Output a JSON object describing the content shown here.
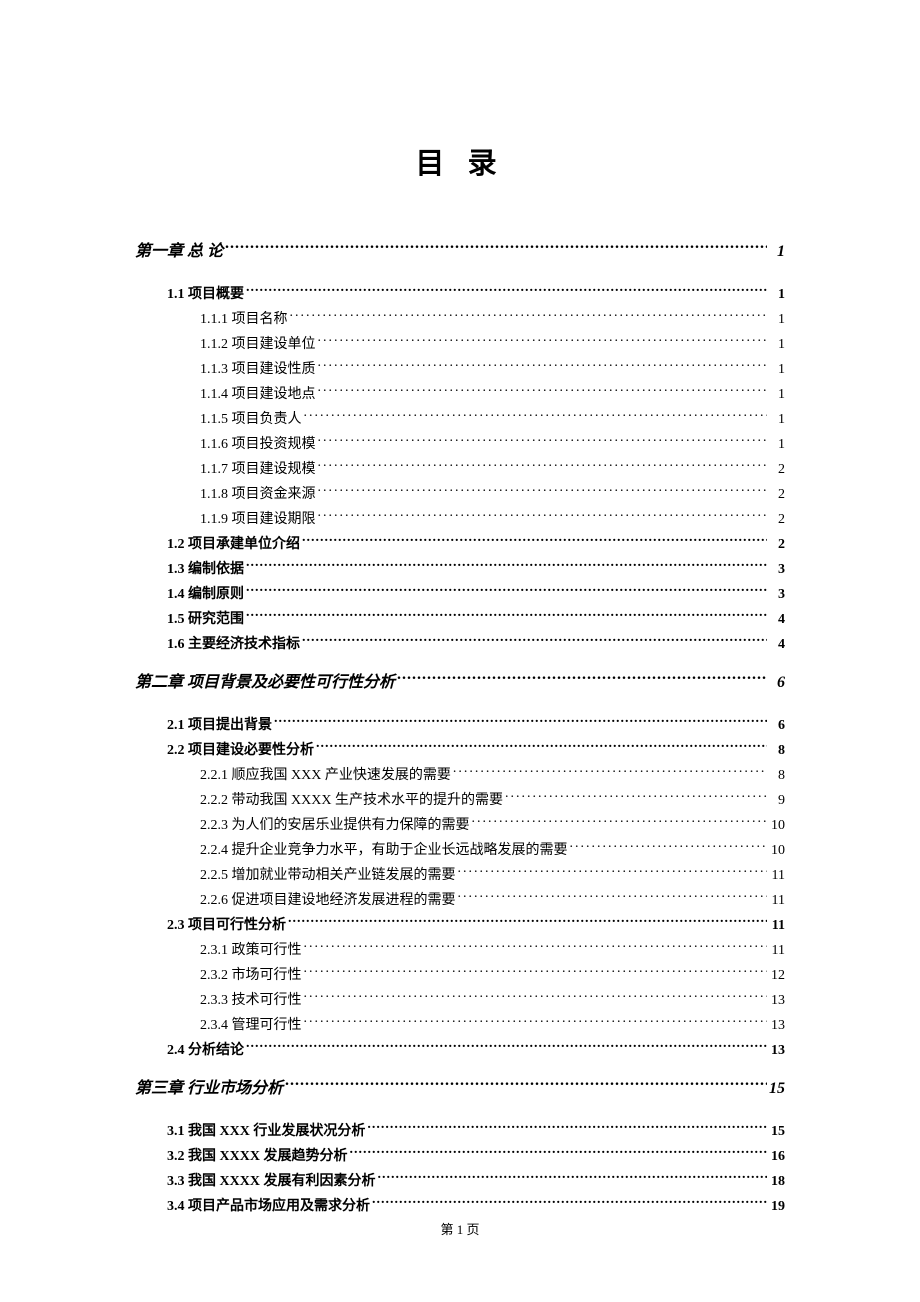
{
  "title": "目 录",
  "footer": "第 1 页",
  "entries": [
    {
      "level": 1,
      "label": "第一章  总  论",
      "page": "1"
    },
    {
      "level": 2,
      "label": "1.1 项目概要",
      "page": "1"
    },
    {
      "level": 3,
      "label": "1.1.1 项目名称",
      "page": "1"
    },
    {
      "level": 3,
      "label": "1.1.2 项目建设单位",
      "page": "1"
    },
    {
      "level": 3,
      "label": "1.1.3 项目建设性质",
      "page": "1"
    },
    {
      "level": 3,
      "label": "1.1.4 项目建设地点",
      "page": "1"
    },
    {
      "level": 3,
      "label": "1.1.5 项目负责人",
      "page": "1"
    },
    {
      "level": 3,
      "label": "1.1.6 项目投资规模",
      "page": "1"
    },
    {
      "level": 3,
      "label": "1.1.7 项目建设规模",
      "page": "2"
    },
    {
      "level": 3,
      "label": "1.1.8 项目资金来源",
      "page": "2"
    },
    {
      "level": 3,
      "label": "1.1.9 项目建设期限",
      "page": "2"
    },
    {
      "level": 2,
      "label": "1.2 项目承建单位介绍",
      "page": "2"
    },
    {
      "level": 2,
      "label": "1.3 编制依据",
      "page": "3"
    },
    {
      "level": 2,
      "label": "1.4 编制原则",
      "page": "3"
    },
    {
      "level": 2,
      "label": "1.5 研究范围",
      "page": "4"
    },
    {
      "level": 2,
      "label": "1.6 主要经济技术指标",
      "page": "4"
    },
    {
      "level": 1,
      "label": "第二章  项目背景及必要性可行性分析",
      "page": "6"
    },
    {
      "level": 2,
      "label": "2.1 项目提出背景",
      "page": "6"
    },
    {
      "level": 2,
      "label": "2.2 项目建设必要性分析",
      "page": "8"
    },
    {
      "level": 3,
      "label": "2.2.1 顺应我国 XXX 产业快速发展的需要",
      "page": "8"
    },
    {
      "level": 3,
      "label": "2.2.2 带动我国 XXXX 生产技术水平的提升的需要",
      "page": "9"
    },
    {
      "level": 3,
      "label": "2.2.3 为人们的安居乐业提供有力保障的需要",
      "page": "10"
    },
    {
      "level": 3,
      "label": "2.2.4 提升企业竞争力水平，有助于企业长远战略发展的需要",
      "page": "10"
    },
    {
      "level": 3,
      "label": "2.2.5 增加就业带动相关产业链发展的需要",
      "page": "11"
    },
    {
      "level": 3,
      "label": "2.2.6 促进项目建设地经济发展进程的需要",
      "page": "11"
    },
    {
      "level": 2,
      "label": "2.3 项目可行性分析",
      "page": "11"
    },
    {
      "level": 3,
      "label": "2.3.1 政策可行性",
      "page": "11"
    },
    {
      "level": 3,
      "label": "2.3.2 市场可行性",
      "page": "12"
    },
    {
      "level": 3,
      "label": "2.3.3 技术可行性",
      "page": "13"
    },
    {
      "level": 3,
      "label": "2.3.4 管理可行性",
      "page": "13"
    },
    {
      "level": 2,
      "label": "2.4 分析结论",
      "page": "13"
    },
    {
      "level": 1,
      "label": "第三章  行业市场分析",
      "page": "15"
    },
    {
      "level": 2,
      "label": "3.1 我国 XXX 行业发展状况分析",
      "page": "15"
    },
    {
      "level": 2,
      "label": "3.2 我国 XXXX  发展趋势分析",
      "page": "16"
    },
    {
      "level": 2,
      "label": "3.3 我国 XXXX 发展有利因素分析",
      "page": "18"
    },
    {
      "level": 2,
      "label": "3.4 项目产品市场应用及需求分析",
      "page": "19"
    }
  ]
}
